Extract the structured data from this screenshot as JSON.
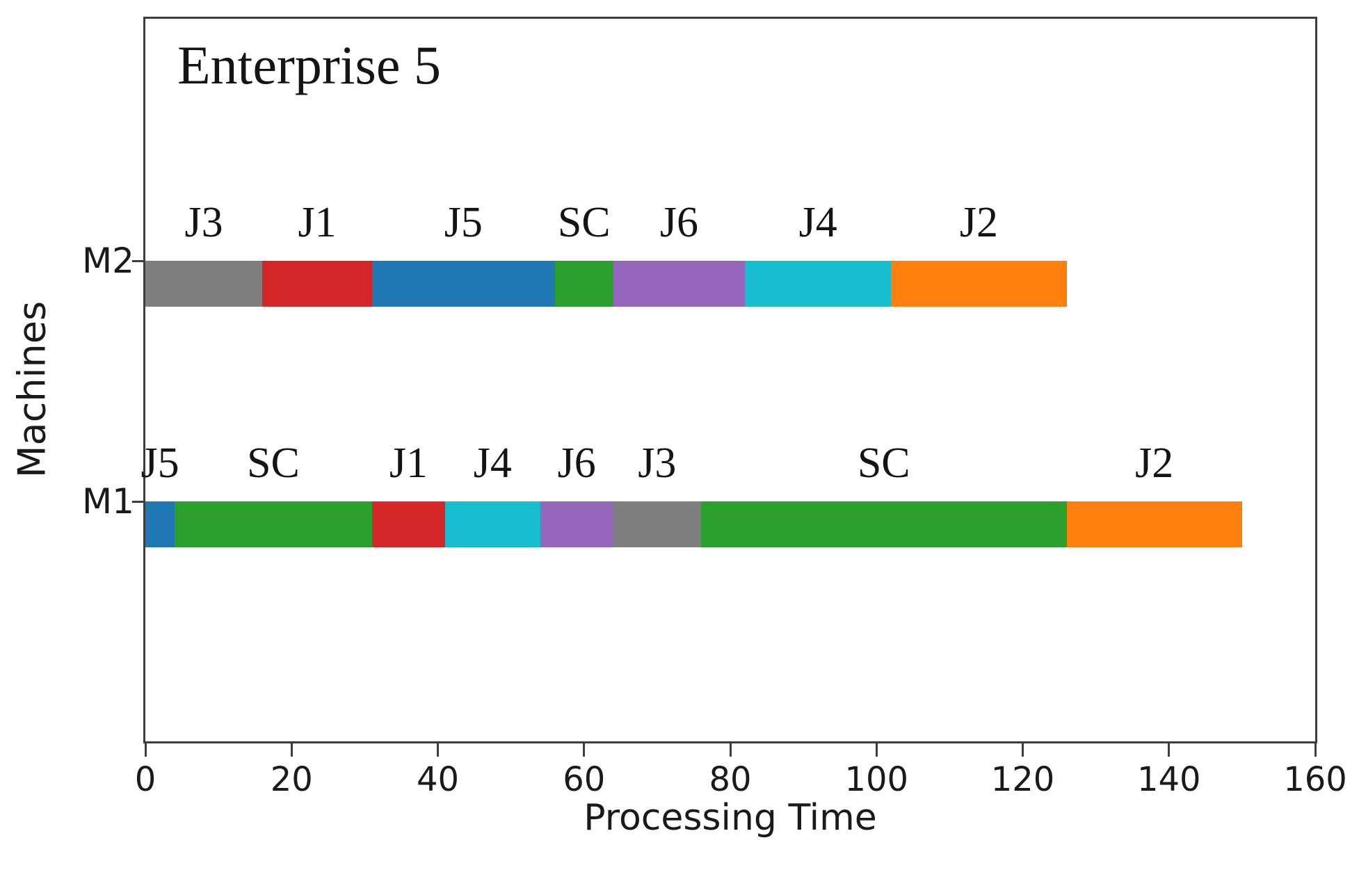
{
  "chart_data": {
    "type": "gantt",
    "title": "Enterprise 5",
    "xlabel": "Processing Time",
    "ylabel": "Machines",
    "xlim": [
      0,
      160
    ],
    "x_ticks": [
      0,
      20,
      40,
      60,
      80,
      100,
      120,
      140,
      160
    ],
    "grid": false,
    "legend": "none",
    "job_colors": {
      "J1": "#d62728",
      "J2": "#ff7f0e",
      "J3": "#7f7f7f",
      "J4": "#17becf",
      "J5": "#1f77b4",
      "J6": "#9467bd",
      "SC": "#2ca02c"
    },
    "machines": [
      {
        "name": "M2",
        "segments": [
          {
            "job": "J3",
            "start": 0,
            "end": 16
          },
          {
            "job": "J1",
            "start": 16,
            "end": 31
          },
          {
            "job": "J5",
            "start": 31,
            "end": 56
          },
          {
            "job": "SC",
            "start": 56,
            "end": 64
          },
          {
            "job": "J6",
            "start": 64,
            "end": 82
          },
          {
            "job": "J4",
            "start": 82,
            "end": 102
          },
          {
            "job": "J2",
            "start": 102,
            "end": 126
          }
        ]
      },
      {
        "name": "M1",
        "segments": [
          {
            "job": "J5",
            "start": 0,
            "end": 4
          },
          {
            "job": "SC",
            "start": 4,
            "end": 31
          },
          {
            "job": "J1",
            "start": 31,
            "end": 41
          },
          {
            "job": "J4",
            "start": 41,
            "end": 54
          },
          {
            "job": "J6",
            "start": 54,
            "end": 64
          },
          {
            "job": "J3",
            "start": 64,
            "end": 76
          },
          {
            "job": "SC",
            "start": 76,
            "end": 126
          },
          {
            "job": "J2",
            "start": 126,
            "end": 150
          }
        ]
      }
    ]
  }
}
